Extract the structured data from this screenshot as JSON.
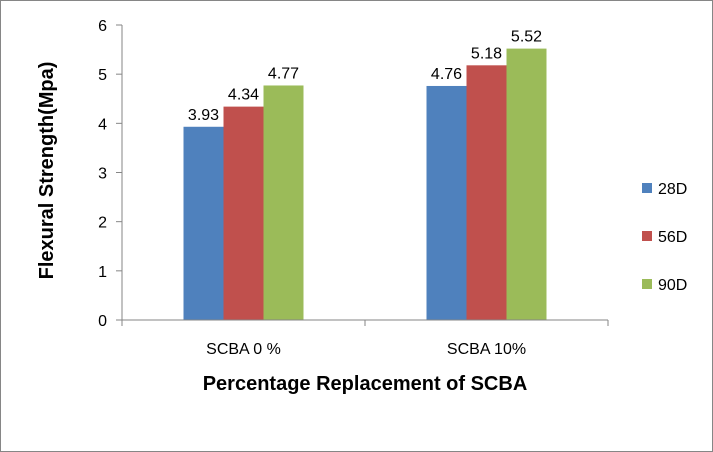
{
  "chart_data": {
    "type": "bar",
    "title": "",
    "xlabel": "Percentage Replacement of SCBA",
    "ylabel": "Flexural Strength(Mpa)",
    "categories": [
      "SCBA 0 %",
      "SCBA 10%"
    ],
    "series": [
      {
        "name": "28D",
        "color": "#4F81BD",
        "values": [
          3.93,
          4.76
        ]
      },
      {
        "name": "56D",
        "color": "#C0504D",
        "values": [
          4.34,
          5.18
        ]
      },
      {
        "name": "90D",
        "color": "#9BBB59",
        "values": [
          4.77,
          5.52
        ]
      }
    ],
    "ylim": [
      0,
      6
    ],
    "yticks": [
      0,
      1,
      2,
      3,
      4,
      5,
      6
    ],
    "data_labels": true,
    "grid": false,
    "legend": "right"
  }
}
